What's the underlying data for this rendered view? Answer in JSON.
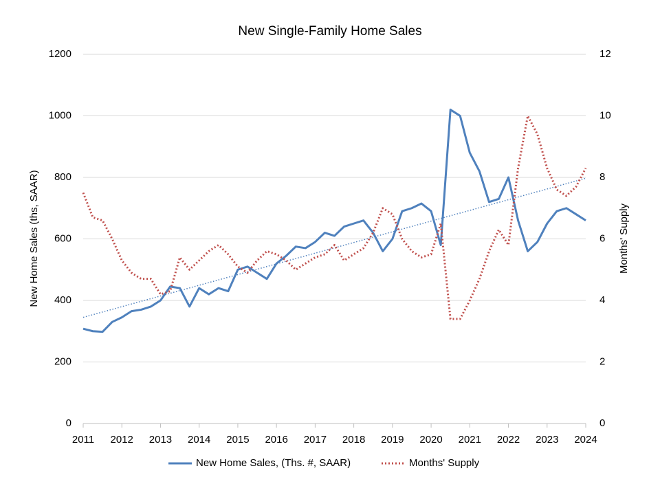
{
  "chart_data": {
    "type": "line",
    "title": "New Single-Family Home Sales",
    "y_label": "New Home Sales (ths, SAAR)",
    "y2_label": "Months' Supply",
    "x": [
      2011,
      2011.25,
      2011.5,
      2011.75,
      2012,
      2012.25,
      2012.5,
      2012.75,
      2013,
      2013.25,
      2013.5,
      2013.75,
      2014,
      2014.25,
      2014.5,
      2014.75,
      2015,
      2015.25,
      2015.5,
      2015.75,
      2016,
      2016.25,
      2016.5,
      2016.75,
      2017,
      2017.25,
      2017.5,
      2017.75,
      2018,
      2018.25,
      2018.5,
      2018.75,
      2019,
      2019.25,
      2019.5,
      2019.75,
      2020,
      2020.25,
      2020.5,
      2020.75,
      2021,
      2021.25,
      2021.5,
      2021.75,
      2022,
      2022.25,
      2022.5,
      2022.75,
      2023,
      2023.25,
      2023.5,
      2023.75,
      2024
    ],
    "series": [
      {
        "name": "New Home Sales, (Ths. #, SAAR)",
        "color": "#4f81bd",
        "style": "solid",
        "values": [
          308,
          300,
          298,
          330,
          345,
          365,
          370,
          380,
          400,
          445,
          440,
          380,
          440,
          420,
          440,
          430,
          500,
          510,
          490,
          470,
          520,
          545,
          575,
          570,
          590,
          620,
          610,
          640,
          650,
          660,
          620,
          560,
          600,
          690,
          700,
          715,
          690,
          580,
          1020,
          1000,
          880,
          820,
          720,
          730,
          800,
          660,
          560,
          590,
          650,
          690,
          700,
          680,
          660
        ]
      },
      {
        "name": "Months' Supply",
        "color": "#c0504d",
        "style": "dotted",
        "axis": "y2",
        "values": [
          7.5,
          6.7,
          6.6,
          6.0,
          5.3,
          4.9,
          4.7,
          4.7,
          4.2,
          4.3,
          5.4,
          5.0,
          5.3,
          5.6,
          5.8,
          5.5,
          5.1,
          4.9,
          5.3,
          5.6,
          5.5,
          5.3,
          5.0,
          5.2,
          5.4,
          5.5,
          5.8,
          5.3,
          5.5,
          5.7,
          6.2,
          7.0,
          6.8,
          6.0,
          5.6,
          5.4,
          5.5,
          6.5,
          3.4,
          3.4,
          4.0,
          4.7,
          5.6,
          6.3,
          5.8,
          8.3,
          10.0,
          9.4,
          8.3,
          7.6,
          7.4,
          7.7,
          8.3
        ]
      }
    ],
    "trendline": {
      "x": [
        2011,
        2024
      ],
      "values": [
        345,
        797
      ],
      "color": "#4f81bd"
    },
    "xlim": [
      2011,
      2024
    ],
    "xticks": [
      2011,
      2012,
      2013,
      2014,
      2015,
      2016,
      2017,
      2018,
      2019,
      2020,
      2021,
      2022,
      2023,
      2024
    ],
    "ylim": [
      0,
      1200
    ],
    "yticks": [
      0,
      200,
      400,
      600,
      800,
      1000,
      1200
    ],
    "y2lim": [
      0,
      12
    ],
    "y2ticks": [
      0,
      2,
      4,
      6,
      8,
      10,
      12
    ],
    "grid": true,
    "legend": "bottom"
  }
}
